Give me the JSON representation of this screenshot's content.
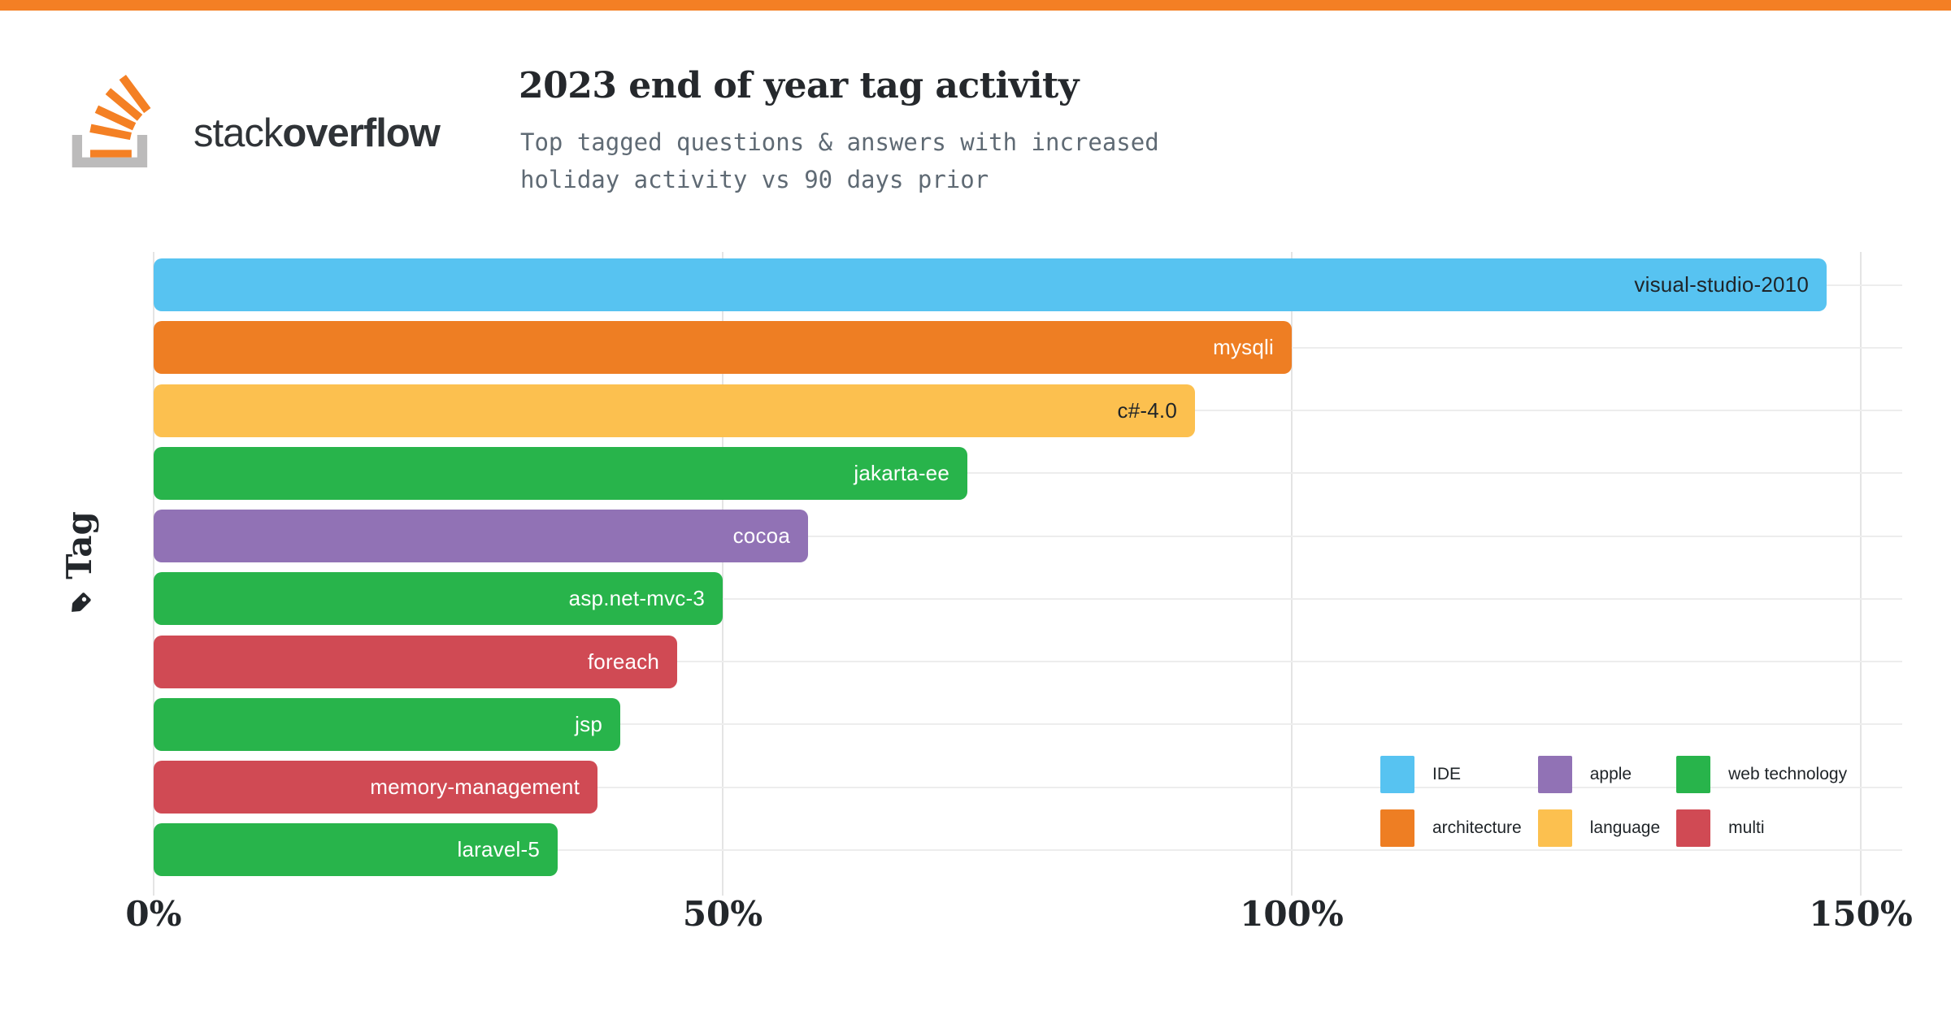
{
  "page": {
    "top_bar_color": "#f47f24",
    "background": "#ffffff"
  },
  "brand": {
    "logo_icon": "stack-overflow-logo-icon",
    "name_regular": "stack",
    "name_bold": "overflow",
    "icon_gray": "#bcbbbb",
    "icon_orange": "#f48024"
  },
  "header": {
    "title": "2023 end of year tag activity",
    "subtitle": "Top tagged questions & answers with increased\nholiday activity vs 90 days prior"
  },
  "chart_data": {
    "type": "bar",
    "orientation": "horizontal",
    "title": "2023 end of year tag activity",
    "subtitle": "Top tagged questions & answers with increased holiday activity vs 90 days prior",
    "ylabel": "Tag",
    "xlim": [
      0,
      150
    ],
    "x_unit": "%",
    "grid": true,
    "legend_position": "bottom-right",
    "x_ticks": [
      {
        "label": "0%",
        "value": 0
      },
      {
        "label": "50%",
        "value": 50
      },
      {
        "label": "100%",
        "value": 100
      },
      {
        "label": "150%",
        "value": 150
      }
    ],
    "bars": [
      {
        "label": "visual-studio-2010",
        "value": 147,
        "category": "IDE",
        "color": "#57c3f1",
        "label_color": "#1f2428"
      },
      {
        "label": "mysqli",
        "value": 100,
        "category": "architecture",
        "color": "#ee7e23",
        "label_color": "#ffffff"
      },
      {
        "label": "c#-4.0",
        "value": 91.5,
        "category": "language",
        "color": "#fcc04f",
        "label_color": "#1f2428"
      },
      {
        "label": "jakarta-ee",
        "value": 71.5,
        "category": "web technology",
        "color": "#28b44b",
        "label_color": "#ffffff"
      },
      {
        "label": "cocoa",
        "value": 57.5,
        "category": "apple",
        "color": "#9172b5",
        "label_color": "#ffffff"
      },
      {
        "label": "asp.net-mvc-3",
        "value": 50,
        "category": "web technology",
        "color": "#28b44b",
        "label_color": "#ffffff"
      },
      {
        "label": "foreach",
        "value": 46,
        "category": "multi",
        "color": "#d04a54",
        "label_color": "#ffffff"
      },
      {
        "label": "jsp",
        "value": 41,
        "category": "web technology",
        "color": "#28b44b",
        "label_color": "#ffffff"
      },
      {
        "label": "memory-management",
        "value": 39,
        "category": "multi",
        "color": "#d04a54",
        "label_color": "#ffffff"
      },
      {
        "label": "laravel-5",
        "value": 35.5,
        "category": "web technology",
        "color": "#28b44b",
        "label_color": "#ffffff"
      }
    ],
    "legend": [
      {
        "label": "IDE",
        "color": "#57c3f1"
      },
      {
        "label": "apple",
        "color": "#9172b5"
      },
      {
        "label": "web technology",
        "color": "#28b44b"
      },
      {
        "label": "architecture",
        "color": "#ee7e23"
      },
      {
        "label": "language",
        "color": "#fcc04f"
      },
      {
        "label": "multi",
        "color": "#d04a54"
      }
    ]
  },
  "y_axis": {
    "label": "Tag",
    "icon": "tag-icon"
  }
}
